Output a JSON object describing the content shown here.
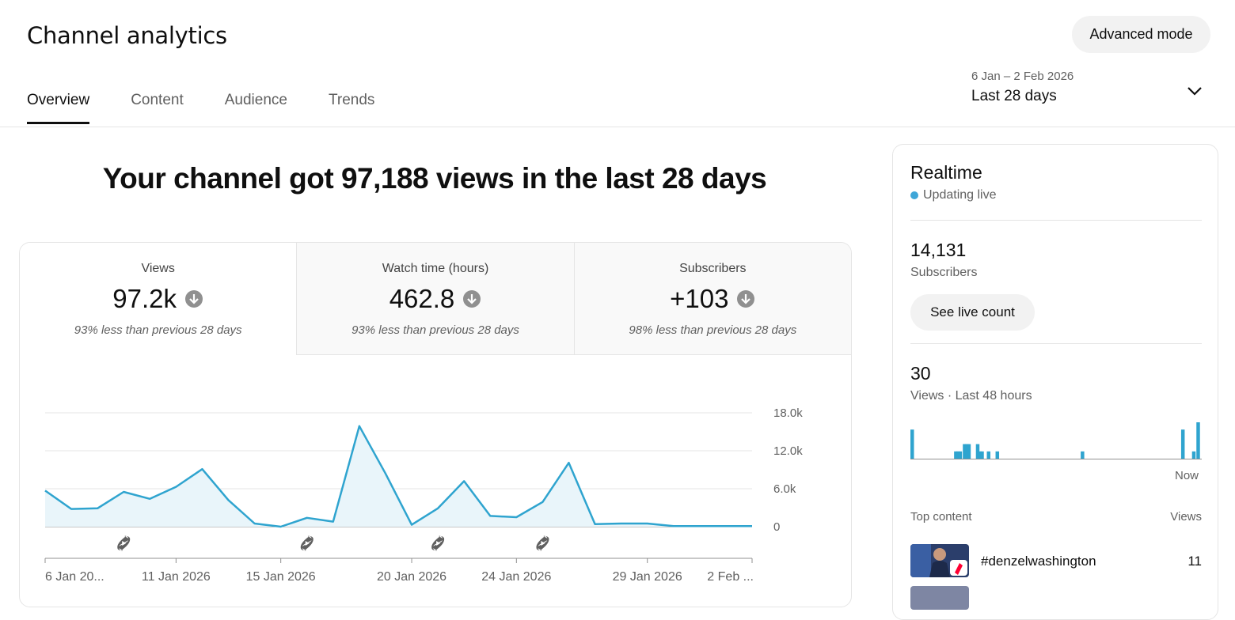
{
  "header": {
    "title": "Channel analytics",
    "advanced_mode": "Advanced mode",
    "tabs": [
      {
        "label": "Overview",
        "active": true
      },
      {
        "label": "Content",
        "active": false
      },
      {
        "label": "Audience",
        "active": false
      },
      {
        "label": "Trends",
        "active": false
      }
    ],
    "date_range": "6 Jan – 2 Feb 2026",
    "date_preset": "Last 28 days"
  },
  "headline": "Your channel got 97,188 views in the last 28 days",
  "metrics": [
    {
      "label": "Views",
      "value": "97.2k",
      "sub": "93% less than previous 28 days",
      "trend": "down"
    },
    {
      "label": "Watch time (hours)",
      "value": "462.8",
      "sub": "93% less than previous 28 days",
      "trend": "down"
    },
    {
      "label": "Subscribers",
      "value": "+103",
      "sub": "98% less than previous 28 days",
      "trend": "down"
    }
  ],
  "colors": {
    "line": "#2fa4cf",
    "fill": "#e9f5fa",
    "accent_live": "#3ea6d8",
    "short_badge": "#ff0033"
  },
  "chart_data": {
    "type": "area",
    "series": [
      {
        "values": [
          5700,
          2800,
          2900,
          5500,
          4400,
          6300,
          9100,
          4200,
          500,
          0,
          1400,
          800,
          15900,
          8400,
          300,
          2900,
          7200,
          1700,
          1500,
          3900,
          10100,
          400,
          500,
          500,
          100,
          100,
          100,
          100
        ]
      }
    ],
    "x_tick_labels": [
      "6 Jan 20...",
      "11 Jan 2026",
      "15 Jan 2026",
      "20 Jan 2026",
      "24 Jan 2026",
      "29 Jan 2026",
      "2 Feb ..."
    ],
    "x_tick_days": [
      0,
      5,
      9,
      14,
      18,
      23,
      27
    ],
    "y_tick_labels": [
      "0",
      "6.0k",
      "12.0k",
      "18.0k"
    ],
    "y_ticks": [
      0,
      6000,
      12000,
      18000
    ],
    "ylim": [
      0,
      18000
    ],
    "shorts_markers_days": [
      3,
      10,
      15,
      19
    ],
    "grid": true
  },
  "realtime": {
    "title": "Realtime",
    "status": "Updating live",
    "subscribers_value": "14,131",
    "subscribers_label": "Subscribers",
    "live_count_button": "See live count",
    "views_value": "30",
    "views_label": "Views · Last 48 hours",
    "now_label": "Now",
    "hourly_views": [
      4,
      0,
      0,
      0,
      0,
      0,
      0,
      0,
      0,
      0,
      0,
      0,
      0,
      0,
      0,
      0,
      0,
      0,
      0,
      0,
      1,
      1,
      1,
      0,
      2,
      2,
      2,
      0,
      0,
      0,
      2,
      1,
      1,
      0,
      0,
      1,
      0,
      0,
      0,
      1,
      0,
      0,
      0,
      0,
      0,
      0,
      0,
      0,
      0,
      0,
      0,
      0,
      0,
      0,
      0,
      0,
      0,
      0,
      0,
      0,
      0,
      0,
      0,
      0,
      0,
      0,
      0,
      0,
      0,
      0,
      0,
      0,
      0,
      0,
      0,
      0,
      0,
      0,
      1,
      0,
      0,
      0,
      0,
      0,
      0,
      0,
      0,
      0,
      0,
      0,
      0,
      0,
      0,
      0,
      0,
      0,
      0,
      0,
      0,
      0,
      0,
      0,
      0,
      0,
      0,
      0,
      0,
      0,
      0,
      0,
      0,
      0,
      0,
      0,
      0,
      0,
      0,
      0,
      0,
      0,
      0,
      0,
      0,
      0,
      4,
      0,
      0,
      0,
      0,
      1,
      0,
      5
    ],
    "top_content_label": "Top content",
    "views_col": "Views",
    "top_items": [
      {
        "name": "#denzelwashington",
        "views": "11"
      }
    ]
  }
}
